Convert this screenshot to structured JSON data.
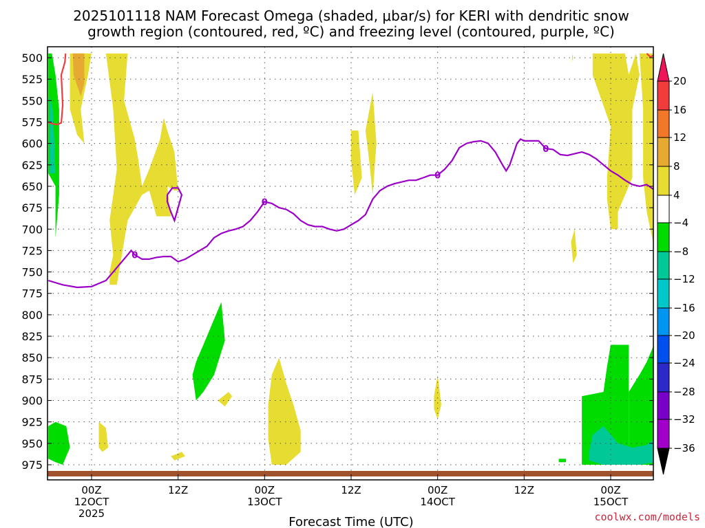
{
  "chart_data": {
    "type": "heatmap",
    "title_line1": "2025101118 NAM Forecast Omega (shaded, μbar/s) for KERI with dendritic snow",
    "title_line2": "growth region (contoured, red, ºC) and freezing level (contoured, purple, ºC)",
    "xlabel": "Forecast Time (UTC)",
    "y_ticks": [
      500,
      525,
      550,
      575,
      600,
      625,
      650,
      675,
      700,
      725,
      750,
      775,
      800,
      825,
      850,
      875,
      900,
      925,
      950,
      975
    ],
    "ylim": [
      980,
      495
    ],
    "xlim_hours": [
      -6,
      78
    ],
    "x_ticks": [
      {
        "hour": 0,
        "line1": "00Z",
        "line2": "12OCT",
        "line3": "2025"
      },
      {
        "hour": 12,
        "line1": "12Z",
        "line2": "",
        "line3": ""
      },
      {
        "hour": 24,
        "line1": "00Z",
        "line2": "13OCT",
        "line3": ""
      },
      {
        "hour": 36,
        "line1": "12Z",
        "line2": "",
        "line3": ""
      },
      {
        "hour": 48,
        "line1": "00Z",
        "line2": "14OCT",
        "line3": ""
      },
      {
        "hour": 60,
        "line1": "12Z",
        "line2": "",
        "line3": ""
      },
      {
        "hour": 72,
        "line1": "00Z",
        "line2": "15OCT",
        "line3": ""
      }
    ],
    "grid": true,
    "colorbar": {
      "labels": [
        "20",
        "16",
        "12",
        "8",
        "4",
        "−4",
        "−8",
        "−12",
        "−16",
        "−20",
        "−24",
        "−28",
        "−32",
        "−36"
      ],
      "colors": [
        "#f0145a",
        "#f03c3c",
        "#f07828",
        "#e6aa32",
        "#e6dc32",
        "#ffffff",
        "#00dc00",
        "#00c896",
        "#00c8c8",
        "#0096f0",
        "#0050f0",
        "#2d28c8",
        "#7800c8",
        "#a000c8",
        "#aaaaaa",
        "#000000"
      ]
    },
    "freezing_level": {
      "label": "0",
      "points": [
        [
          -6,
          760
        ],
        [
          -4,
          765
        ],
        [
          -2,
          768
        ],
        [
          0,
          767
        ],
        [
          2,
          760
        ],
        [
          3,
          750
        ],
        [
          4,
          740
        ],
        [
          5,
          730
        ],
        [
          5.5,
          725
        ],
        [
          6,
          730
        ],
        [
          7,
          735
        ],
        [
          8,
          735
        ],
        [
          9,
          733
        ],
        [
          10,
          732
        ],
        [
          11,
          732
        ],
        [
          12,
          738
        ],
        [
          13,
          735
        ],
        [
          14,
          730
        ],
        [
          15,
          725
        ],
        [
          16,
          720
        ],
        [
          17,
          710
        ],
        [
          18,
          705
        ],
        [
          19,
          702
        ],
        [
          20,
          700
        ],
        [
          21,
          697
        ],
        [
          22,
          690
        ],
        [
          23,
          680
        ],
        [
          24,
          668
        ],
        [
          25,
          670
        ],
        [
          26,
          675
        ],
        [
          27,
          677
        ],
        [
          28,
          682
        ],
        [
          29,
          690
        ],
        [
          30,
          695
        ],
        [
          31,
          697
        ],
        [
          32,
          697
        ],
        [
          33,
          700
        ],
        [
          34,
          702
        ],
        [
          35,
          700
        ],
        [
          36,
          695
        ],
        [
          37,
          690
        ],
        [
          38,
          683
        ],
        [
          39,
          665
        ],
        [
          40,
          655
        ],
        [
          41,
          650
        ],
        [
          42,
          647
        ],
        [
          43,
          645
        ],
        [
          44,
          643
        ],
        [
          45,
          643
        ],
        [
          46,
          640
        ],
        [
          47,
          637
        ],
        [
          48,
          637
        ],
        [
          49,
          630
        ],
        [
          50,
          620
        ],
        [
          51,
          605
        ],
        [
          52,
          600
        ],
        [
          53,
          598
        ],
        [
          54,
          597
        ],
        [
          55,
          600
        ],
        [
          56,
          610
        ],
        [
          57,
          625
        ],
        [
          57.5,
          632
        ],
        [
          58,
          625
        ],
        [
          59,
          600
        ],
        [
          59.5,
          595
        ],
        [
          60,
          597
        ],
        [
          61,
          597
        ],
        [
          62,
          597
        ],
        [
          63,
          606
        ],
        [
          64,
          607
        ],
        [
          65,
          613
        ],
        [
          66,
          614
        ],
        [
          67,
          612
        ],
        [
          68,
          610
        ],
        [
          69,
          613
        ],
        [
          70,
          618
        ],
        [
          71,
          625
        ],
        [
          72,
          632
        ],
        [
          73,
          637
        ],
        [
          74,
          643
        ],
        [
          75,
          648
        ],
        [
          76,
          650
        ],
        [
          77,
          648
        ],
        [
          78,
          654
        ]
      ],
      "loop": [
        [
          10.5,
          660
        ],
        [
          11.2,
          652
        ],
        [
          12,
          652
        ],
        [
          12.5,
          660
        ],
        [
          12,
          675
        ],
        [
          11.5,
          690
        ],
        [
          11,
          680
        ],
        [
          10.5,
          668
        ],
        [
          10.5,
          660
        ]
      ]
    },
    "dendritic_region": [
      [
        [
          -6,
          575
        ],
        [
          -5.5,
          577
        ],
        [
          -4.8,
          578
        ],
        [
          -4.2,
          576
        ],
        [
          -4,
          555
        ],
        [
          -4.2,
          520
        ],
        [
          -3.7,
          505
        ],
        [
          -3.6,
          495
        ]
      ],
      [
        [
          77,
          495
        ],
        [
          77.5,
          499
        ],
        [
          78,
          497
        ]
      ]
    ],
    "omega_regions": [
      {
        "value": 4,
        "points": [
          [
            -3,
            495
          ],
          [
            -3,
            560
          ],
          [
            -2,
            590
          ],
          [
            -1,
            600
          ],
          [
            -1.5,
            560
          ],
          [
            -0.5,
            520
          ],
          [
            0,
            495
          ]
        ]
      },
      {
        "value": 8,
        "points": [
          [
            -2.6,
            495
          ],
          [
            -2.5,
            520
          ],
          [
            -1.5,
            545
          ],
          [
            -1,
            530
          ],
          [
            -1,
            495
          ]
        ]
      },
      {
        "value": 4,
        "points": [
          [
            2,
            495
          ],
          [
            3,
            560
          ],
          [
            3.5,
            630
          ],
          [
            2.5,
            690
          ],
          [
            3,
            730
          ],
          [
            2.5,
            750
          ],
          [
            2.5,
            765
          ],
          [
            3.5,
            765
          ],
          [
            4,
            740
          ],
          [
            5,
            690
          ],
          [
            7,
            660
          ],
          [
            8,
            655
          ],
          [
            9,
            685
          ],
          [
            11,
            685
          ],
          [
            10.5,
            650
          ],
          [
            11.5,
            655
          ],
          [
            12,
            655
          ],
          [
            11.5,
            610
          ],
          [
            10.5,
            585
          ],
          [
            10,
            570
          ],
          [
            9.5,
            595
          ],
          [
            8,
            630
          ],
          [
            7,
            650
          ],
          [
            6.5,
            620
          ],
          [
            6,
            595
          ],
          [
            4.5,
            550
          ],
          [
            5,
            495
          ]
        ]
      },
      {
        "value": -4,
        "points": [
          [
            -6,
            495
          ],
          [
            -6,
            635
          ],
          [
            -5,
            650
          ],
          [
            -5,
            710
          ],
          [
            -4.5,
            660
          ],
          [
            -4.5,
            560
          ],
          [
            -5,
            520
          ],
          [
            -5.5,
            495
          ]
        ]
      },
      {
        "value": -8,
        "points": [
          [
            -5.8,
            545
          ],
          [
            -5.8,
            635
          ],
          [
            -5,
            635
          ],
          [
            -5.2,
            590
          ],
          [
            -5.4,
            560
          ]
        ]
      },
      {
        "value": -4,
        "points": [
          [
            -6,
            930
          ],
          [
            -5,
            925
          ],
          [
            -3.5,
            930
          ],
          [
            -3,
            955
          ],
          [
            -3.5,
            965
          ],
          [
            -4,
            975
          ],
          [
            -5,
            972
          ],
          [
            -6,
            968
          ]
        ]
      },
      {
        "value": 4,
        "points": [
          [
            1,
            925
          ],
          [
            2,
            932
          ],
          [
            2.3,
            955
          ],
          [
            1.5,
            960
          ],
          [
            1,
            955
          ]
        ]
      },
      {
        "value": 4,
        "points": [
          [
            11,
            965
          ],
          [
            12.5,
            960
          ],
          [
            13,
            965
          ],
          [
            11.5,
            970
          ]
        ]
      },
      {
        "value": -4,
        "points": [
          [
            14.5,
            855
          ],
          [
            16,
            825
          ],
          [
            17,
            805
          ],
          [
            18,
            785
          ],
          [
            18.5,
            830
          ],
          [
            17,
            870
          ],
          [
            15.5,
            890
          ],
          [
            14.5,
            900
          ],
          [
            14,
            870
          ]
        ]
      },
      {
        "value": 4,
        "points": [
          [
            17.5,
            900
          ],
          [
            19,
            890
          ],
          [
            19.5,
            895
          ],
          [
            18.5,
            907
          ]
        ]
      },
      {
        "value": 4,
        "points": [
          [
            24.5,
            905
          ],
          [
            25,
            870
          ],
          [
            26,
            850
          ],
          [
            27,
            880
          ],
          [
            28,
            905
          ],
          [
            29,
            935
          ],
          [
            29,
            960
          ],
          [
            27,
            975
          ],
          [
            25,
            975
          ],
          [
            24.5,
            945
          ]
        ]
      },
      {
        "value": 4,
        "points": [
          [
            36,
            585
          ],
          [
            37,
            585
          ],
          [
            37.5,
            640
          ],
          [
            36.5,
            660
          ],
          [
            36,
            620
          ]
        ]
      },
      {
        "value": 4,
        "points": [
          [
            38,
            585
          ],
          [
            39,
            540
          ],
          [
            39.5,
            600
          ],
          [
            39,
            660
          ],
          [
            38.5,
            620
          ]
        ]
      },
      {
        "value": 4,
        "points": [
          [
            47.5,
            895
          ],
          [
            48,
            870
          ],
          [
            48.5,
            905
          ],
          [
            48,
            922
          ],
          [
            47.5,
            910
          ]
        ]
      },
      {
        "value": 4,
        "points": [
          [
            69.5,
            495
          ],
          [
            69.5,
            520
          ],
          [
            72,
            580
          ],
          [
            71.5,
            640
          ],
          [
            71.5,
            665
          ],
          [
            72,
            700
          ],
          [
            73,
            700
          ],
          [
            73,
            680
          ],
          [
            75,
            640
          ],
          [
            75,
            560
          ],
          [
            76,
            520
          ],
          [
            75.5,
            495
          ],
          [
            74.5,
            520
          ],
          [
            74,
            495
          ],
          [
            71.5,
            495
          ]
        ]
      },
      {
        "value": 4,
        "points": [
          [
            76,
            495
          ],
          [
            76.5,
            560
          ],
          [
            76.5,
            640
          ],
          [
            77,
            680
          ],
          [
            78,
            720
          ],
          [
            78,
            495
          ]
        ]
      },
      {
        "value": 4,
        "points": [
          [
            66.5,
            715
          ],
          [
            67,
            700
          ],
          [
            67.3,
            730
          ],
          [
            66.8,
            740
          ]
        ]
      },
      {
        "value": 4,
        "points": [
          [
            66.7,
            495
          ],
          [
            66.8,
            500
          ],
          [
            66.6,
            505
          ]
        ]
      },
      {
        "value": -4,
        "points": [
          [
            74.5,
            975
          ],
          [
            74.5,
            890
          ],
          [
            76,
            870
          ],
          [
            77,
            855
          ],
          [
            78,
            835
          ],
          [
            78,
            975
          ]
        ]
      },
      {
        "value": -4,
        "points": [
          [
            68,
            975
          ],
          [
            68,
            895
          ],
          [
            71,
            890
          ],
          [
            71.5,
            860
          ],
          [
            72,
            835
          ],
          [
            74.5,
            835
          ],
          [
            74.5,
            975
          ]
        ]
      },
      {
        "value": -8,
        "points": [
          [
            69,
            960
          ],
          [
            69.5,
            940
          ],
          [
            71,
            930
          ],
          [
            73,
            950
          ],
          [
            75,
            955
          ],
          [
            77,
            952
          ],
          [
            78,
            945
          ],
          [
            78,
            972
          ],
          [
            76,
            975
          ],
          [
            71,
            975
          ],
          [
            69,
            970
          ]
        ]
      },
      {
        "value": -4,
        "points": [
          [
            64.8,
            968
          ],
          [
            65.8,
            968
          ],
          [
            65.8,
            972
          ],
          [
            64.8,
            972
          ]
        ]
      }
    ]
  },
  "credit": "coolwx.com/models"
}
